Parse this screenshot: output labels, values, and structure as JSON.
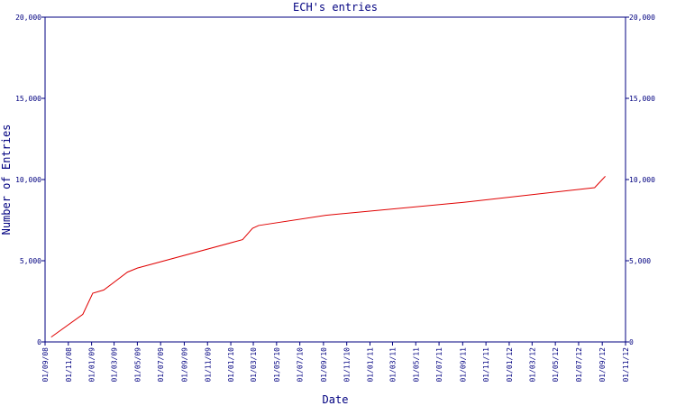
{
  "chart_data": {
    "type": "line",
    "title": "ECH's entries",
    "xlabel": "Date",
    "ylabel": "Number of Entries",
    "x": [
      "2008-09-17",
      "2008-12-09",
      "2009-01-04",
      "2009-02-02",
      "2009-04-05",
      "2009-05-01",
      "2010-02-01",
      "2010-02-27",
      "2010-03-15",
      "2010-09-07",
      "2011-09-04",
      "2012-08-12",
      "2012-09-09"
    ],
    "series": [
      {
        "name": "entries",
        "color": "#e00000",
        "values": [
          300,
          1700,
          3000,
          3200,
          4300,
          4550,
          6300,
          7000,
          7170,
          7800,
          8600,
          9500,
          10200
        ]
      }
    ],
    "xlim": [
      "2008-09-01",
      "2012-11-01"
    ],
    "xticks": [
      {
        "value": "2008-09-01",
        "label": "01/09/08"
      },
      {
        "value": "2008-11-01",
        "label": "01/11/08"
      },
      {
        "value": "2009-01-01",
        "label": "01/01/09"
      },
      {
        "value": "2009-03-01",
        "label": "01/03/09"
      },
      {
        "value": "2009-05-01",
        "label": "01/05/09"
      },
      {
        "value": "2009-07-01",
        "label": "01/07/09"
      },
      {
        "value": "2009-09-01",
        "label": "01/09/09"
      },
      {
        "value": "2009-11-01",
        "label": "01/11/09"
      },
      {
        "value": "2010-01-01",
        "label": "01/01/10"
      },
      {
        "value": "2010-03-01",
        "label": "01/03/10"
      },
      {
        "value": "2010-05-01",
        "label": "01/05/10"
      },
      {
        "value": "2010-07-01",
        "label": "01/07/10"
      },
      {
        "value": "2010-09-01",
        "label": "01/09/10"
      },
      {
        "value": "2010-11-01",
        "label": "01/11/10"
      },
      {
        "value": "2011-01-01",
        "label": "01/01/11"
      },
      {
        "value": "2011-03-01",
        "label": "01/03/11"
      },
      {
        "value": "2011-05-01",
        "label": "01/05/11"
      },
      {
        "value": "2011-07-01",
        "label": "01/07/11"
      },
      {
        "value": "2011-09-01",
        "label": "01/09/11"
      },
      {
        "value": "2011-11-01",
        "label": "01/11/11"
      },
      {
        "value": "2012-01-01",
        "label": "01/01/12"
      },
      {
        "value": "2012-03-01",
        "label": "01/03/12"
      },
      {
        "value": "2012-05-01",
        "label": "01/05/12"
      },
      {
        "value": "2012-07-01",
        "label": "01/07/12"
      },
      {
        "value": "2012-09-01",
        "label": "01/09/12"
      },
      {
        "value": "2012-11-01",
        "label": "01/11/12"
      }
    ],
    "ylim": [
      0,
      20000
    ],
    "yticks": [
      0,
      {
        "value": 5000,
        "label": "5,000"
      },
      {
        "value": 10000,
        "label": "10,000"
      },
      {
        "value": 15000,
        "label": "15,000"
      },
      {
        "value": 20000,
        "label": "20,000"
      }
    ],
    "grid": false
  }
}
